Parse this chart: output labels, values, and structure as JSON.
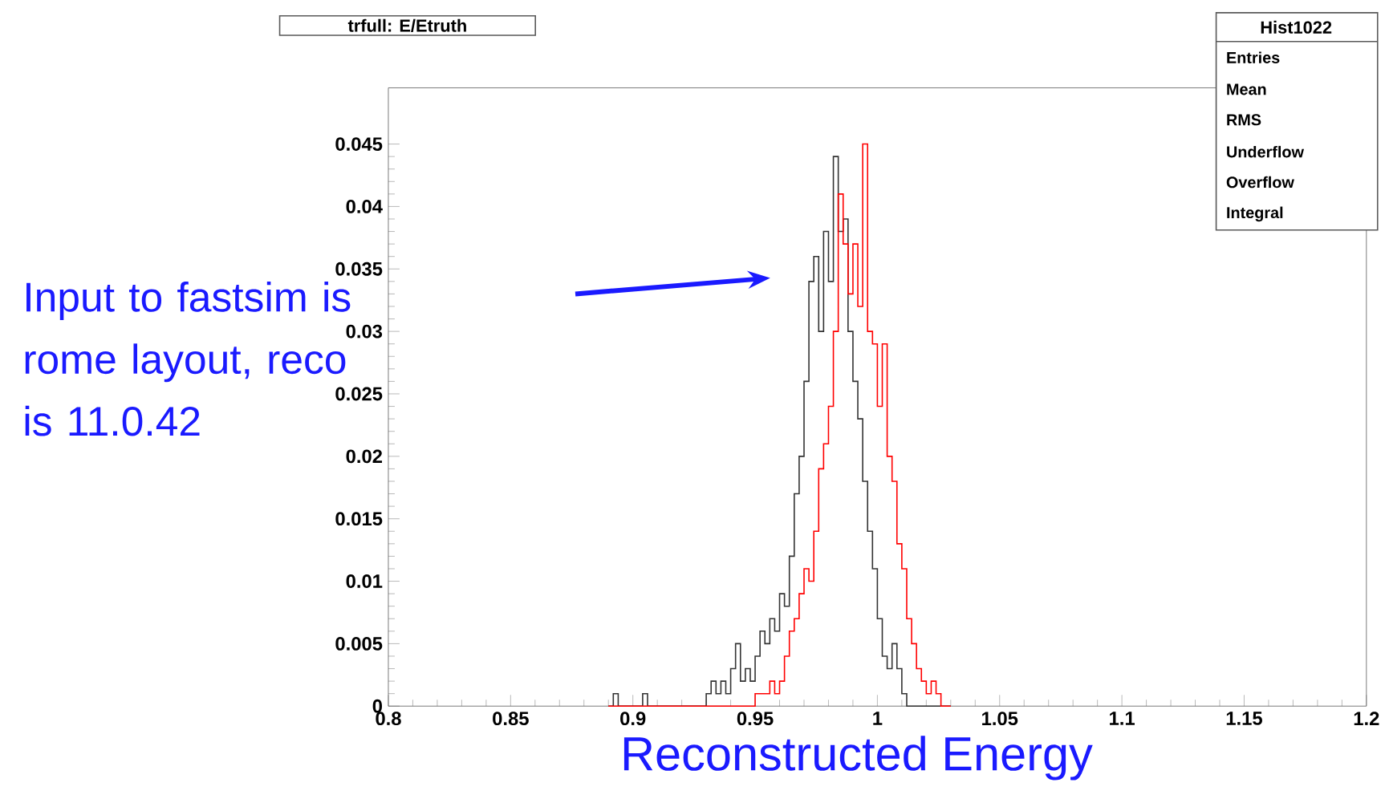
{
  "chart_data": {
    "type": "histogram",
    "title": "trfull: E/Etruth",
    "xlabel": "Reconstructed Energy",
    "annotations": [
      "Input to fastsim is rome layout, reco is 11.0.42",
      "Hist1022",
      "Entries",
      "Mean",
      "RMS",
      "Underflow",
      "Overflow",
      "Integral"
    ],
    "bins": [
      0.89,
      0.892,
      0.894,
      0.896,
      0.898,
      0.9,
      0.902,
      0.904,
      0.906,
      0.908,
      0.91,
      0.912,
      0.914,
      0.916,
      0.918,
      0.92,
      0.922,
      0.924,
      0.926,
      0.928,
      0.93,
      0.932,
      0.934,
      0.936,
      0.938,
      0.94,
      0.942,
      0.944,
      0.946,
      0.948,
      0.95,
      0.952,
      0.954,
      0.956,
      0.958,
      0.96,
      0.962,
      0.964,
      0.966,
      0.968,
      0.97,
      0.972,
      0.974,
      0.976,
      0.978,
      0.98,
      0.982,
      0.984,
      0.986,
      0.988,
      0.99,
      0.992,
      0.994,
      0.996,
      0.998,
      1.0,
      1.002,
      1.004,
      1.006,
      1.008,
      1.01,
      1.012,
      1.014,
      1.016,
      1.018,
      1.02,
      1.022,
      1.024,
      1.026,
      1.028,
      1.03
    ],
    "series": [
      {
        "color": "#333333",
        "values": [
          0,
          0.001,
          0,
          0,
          0,
          0,
          0,
          0.001,
          0,
          0,
          0,
          0,
          0,
          0,
          0,
          0,
          0,
          0,
          0,
          0,
          0.001,
          0.002,
          0.001,
          0.002,
          0.001,
          0.003,
          0.005,
          0.002,
          0.003,
          0.002,
          0.004,
          0.006,
          0.005,
          0.007,
          0.006,
          0.009,
          0.008,
          0.012,
          0.017,
          0.02,
          0.026,
          0.034,
          0.036,
          0.03,
          0.038,
          0.034,
          0.044,
          0.038,
          0.039,
          0.03,
          0.026,
          0.023,
          0.018,
          0.014,
          0.011,
          0.007,
          0.004,
          0.003,
          0.005,
          0.003,
          0.001,
          0,
          0,
          0,
          0,
          0,
          0,
          0,
          0,
          0
        ]
      },
      {
        "color": "#ff0000",
        "values": [
          0,
          0,
          0,
          0,
          0,
          0,
          0,
          0,
          0,
          0,
          0,
          0,
          0,
          0,
          0,
          0,
          0,
          0,
          0,
          0,
          0,
          0,
          0,
          0,
          0,
          0,
          0,
          0,
          0,
          0,
          0.001,
          0.001,
          0.001,
          0.002,
          0.001,
          0.002,
          0.004,
          0.006,
          0.007,
          0.009,
          0.011,
          0.01,
          0.014,
          0.019,
          0.021,
          0.024,
          0.03,
          0.041,
          0.037,
          0.033,
          0.037,
          0.032,
          0.045,
          0.03,
          0.029,
          0.024,
          0.029,
          0.02,
          0.018,
          0.013,
          0.011,
          0.007,
          0.005,
          0.003,
          0.002,
          0.001,
          0.002,
          0.001,
          0,
          0
        ]
      }
    ],
    "xlim": [
      0.8,
      1.2
    ],
    "xticks": [
      0.8,
      0.85,
      0.9,
      0.95,
      1,
      1.05,
      1.1,
      1.15,
      1.2
    ],
    "ylim": [
      0,
      0.0495
    ],
    "yticks": [
      0,
      0.005,
      0.01,
      0.015,
      0.02,
      0.025,
      0.03,
      0.035,
      0.04,
      0.045
    ]
  }
}
